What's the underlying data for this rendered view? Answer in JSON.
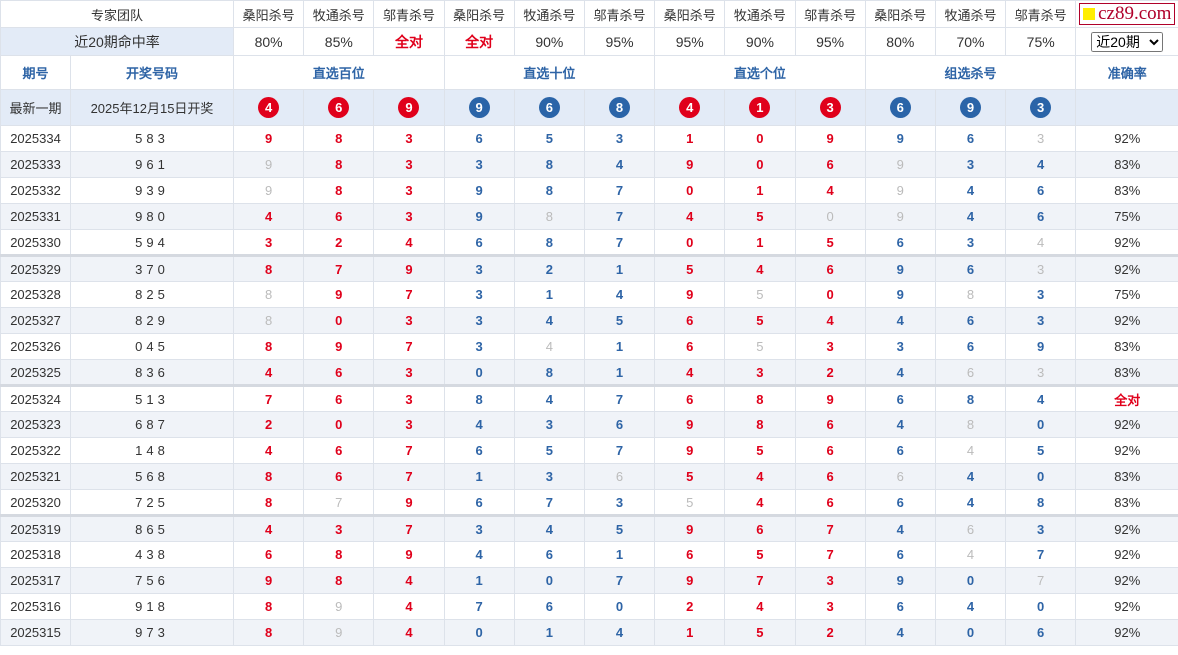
{
  "header": {
    "team_label": "专家团队",
    "experts": [
      "桑阳杀号",
      "牧通杀号",
      "邬青杀号",
      "桑阳杀号",
      "牧通杀号",
      "邬青杀号",
      "桑阳杀号",
      "牧通杀号",
      "邬青杀号",
      "桑阳杀号",
      "牧通杀号",
      "邬青杀号"
    ],
    "logo_text": "cz89.com",
    "hit_label": "近20期命中率",
    "hit_rates": [
      "80%",
      "85%",
      "全对",
      "全对",
      "90%",
      "95%",
      "95%",
      "90%",
      "95%",
      "80%",
      "70%",
      "75%"
    ],
    "period_select": "近20期",
    "col_issue": "期号",
    "col_draw": "开奖号码",
    "groups": [
      "直选百位",
      "直选十位",
      "直选个位",
      "组选杀号"
    ],
    "col_rate": "准确率",
    "latest_label": "最新一期",
    "latest_date": "2025年12月15日开奖",
    "latest_kills": [
      "4",
      "6",
      "9",
      "9",
      "6",
      "8",
      "4",
      "1",
      "3",
      "6",
      "9",
      "3"
    ]
  },
  "colors": {
    "red": "#e0001b",
    "blue": "#2e64a6",
    "miss": "#bbbbbb"
  },
  "rows": [
    {
      "issue": "2025334",
      "draw": "583",
      "kills": [
        9,
        8,
        3,
        6,
        5,
        3,
        1,
        0,
        9,
        9,
        6,
        3
      ],
      "rate": "92%"
    },
    {
      "issue": "2025333",
      "draw": "961",
      "kills": [
        9,
        8,
        3,
        3,
        8,
        4,
        9,
        0,
        6,
        9,
        3,
        4
      ],
      "rate": "83%"
    },
    {
      "issue": "2025332",
      "draw": "939",
      "kills": [
        9,
        8,
        3,
        9,
        8,
        7,
        0,
        1,
        4,
        9,
        4,
        6
      ],
      "rate": "83%"
    },
    {
      "issue": "2025331",
      "draw": "980",
      "kills": [
        4,
        6,
        3,
        9,
        8,
        7,
        4,
        5,
        0,
        9,
        4,
        6
      ],
      "rate": "75%"
    },
    {
      "issue": "2025330",
      "draw": "594",
      "kills": [
        3,
        2,
        4,
        6,
        8,
        7,
        0,
        1,
        5,
        6,
        3,
        4
      ],
      "rate": "92%"
    },
    {
      "issue": "2025329",
      "draw": "370",
      "kills": [
        8,
        7,
        9,
        3,
        2,
        1,
        5,
        4,
        6,
        9,
        6,
        3
      ],
      "rate": "92%"
    },
    {
      "issue": "2025328",
      "draw": "825",
      "kills": [
        8,
        9,
        7,
        3,
        1,
        4,
        9,
        5,
        0,
        9,
        8,
        3
      ],
      "rate": "75%"
    },
    {
      "issue": "2025327",
      "draw": "829",
      "kills": [
        8,
        0,
        3,
        3,
        4,
        5,
        6,
        5,
        4,
        4,
        6,
        3
      ],
      "rate": "92%"
    },
    {
      "issue": "2025326",
      "draw": "045",
      "kills": [
        8,
        9,
        7,
        3,
        4,
        1,
        6,
        5,
        3,
        3,
        6,
        9
      ],
      "rate": "83%"
    },
    {
      "issue": "2025325",
      "draw": "836",
      "kills": [
        4,
        6,
        3,
        0,
        8,
        1,
        4,
        3,
        2,
        4,
        6,
        3
      ],
      "rate": "83%"
    },
    {
      "issue": "2025324",
      "draw": "513",
      "kills": [
        7,
        6,
        3,
        8,
        4,
        7,
        6,
        8,
        9,
        6,
        8,
        4
      ],
      "rate": "全对"
    },
    {
      "issue": "2025323",
      "draw": "687",
      "kills": [
        2,
        0,
        3,
        4,
        3,
        6,
        9,
        8,
        6,
        4,
        8,
        0
      ],
      "rate": "92%"
    },
    {
      "issue": "2025322",
      "draw": "148",
      "kills": [
        4,
        6,
        7,
        6,
        5,
        7,
        9,
        5,
        6,
        6,
        4,
        5
      ],
      "rate": "92%"
    },
    {
      "issue": "2025321",
      "draw": "568",
      "kills": [
        8,
        6,
        7,
        1,
        3,
        6,
        5,
        4,
        6,
        6,
        4,
        0
      ],
      "rate": "83%"
    },
    {
      "issue": "2025320",
      "draw": "725",
      "kills": [
        8,
        7,
        9,
        6,
        7,
        3,
        5,
        4,
        6,
        6,
        4,
        8
      ],
      "rate": "83%"
    },
    {
      "issue": "2025319",
      "draw": "865",
      "kills": [
        4,
        3,
        7,
        3,
        4,
        5,
        9,
        6,
        7,
        4,
        6,
        3
      ],
      "rate": "92%"
    },
    {
      "issue": "2025318",
      "draw": "438",
      "kills": [
        6,
        8,
        9,
        4,
        6,
        1,
        6,
        5,
        7,
        6,
        4,
        7
      ],
      "rate": "92%"
    },
    {
      "issue": "2025317",
      "draw": "756",
      "kills": [
        9,
        8,
        4,
        1,
        0,
        7,
        9,
        7,
        3,
        9,
        0,
        7
      ],
      "rate": "92%"
    },
    {
      "issue": "2025316",
      "draw": "918",
      "kills": [
        8,
        9,
        4,
        7,
        6,
        0,
        2,
        4,
        3,
        6,
        4,
        0
      ],
      "rate": "92%"
    },
    {
      "issue": "2025315",
      "draw": "973",
      "kills": [
        8,
        9,
        4,
        0,
        1,
        4,
        1,
        5,
        2,
        4,
        0,
        6
      ],
      "rate": "92%"
    }
  ]
}
